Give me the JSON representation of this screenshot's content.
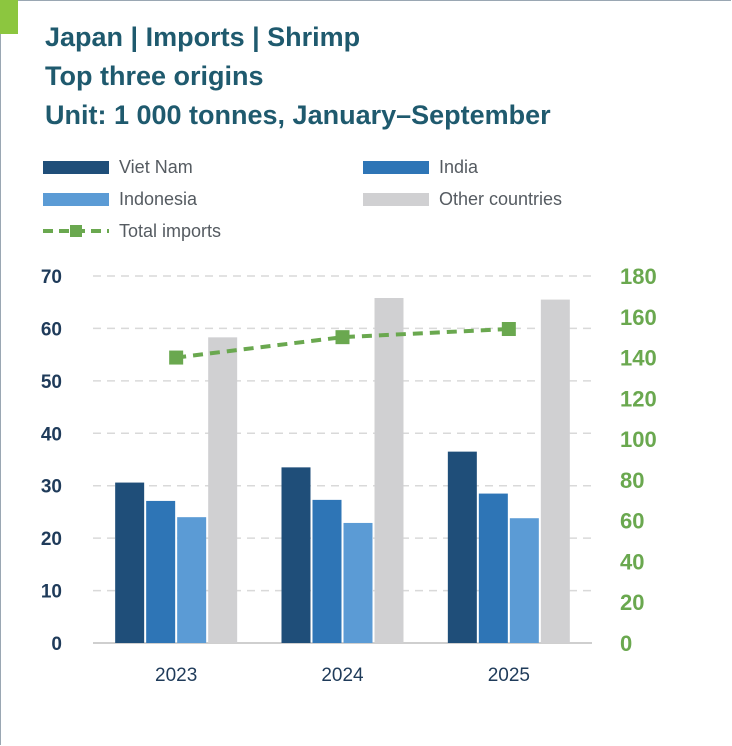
{
  "title": {
    "line1": "Japan | Imports | Shrimp",
    "line2": "Top three origins",
    "line3": "Unit: 1 000 tonnes, January–September"
  },
  "colors": {
    "title": "#1f5a6e",
    "viet_nam": "#1f4e79",
    "india": "#2e75b6",
    "indonesia": "#5b9bd5",
    "other": "#d0d0d2",
    "total": "#6aa84f",
    "left_axis": "#1f3b5a",
    "right_axis": "#6aa84f",
    "grid": "#d9d9d9"
  },
  "legend": [
    {
      "label": "Viet Nam",
      "key": "viet_nam"
    },
    {
      "label": "India",
      "key": "india"
    },
    {
      "label": "Indonesia",
      "key": "indonesia"
    },
    {
      "label": "Other countries",
      "key": "other"
    },
    {
      "label": "Total imports",
      "key": "total"
    }
  ],
  "chart_data": {
    "type": "bar",
    "title": "Japan | Imports | Shrimp",
    "categories": [
      "2023",
      "2024",
      "2025"
    ],
    "series": [
      {
        "name": "Viet Nam",
        "axis": "left",
        "values": [
          30.6,
          33.5,
          36.5
        ]
      },
      {
        "name": "India",
        "axis": "left",
        "values": [
          27.1,
          27.3,
          28.5
        ]
      },
      {
        "name": "Indonesia",
        "axis": "left",
        "values": [
          24.0,
          22.9,
          23.8
        ]
      },
      {
        "name": "Other countries",
        "axis": "left",
        "values": [
          58.3,
          65.8,
          65.5
        ]
      }
    ],
    "line_series": {
      "name": "Total imports",
      "axis": "right",
      "values": [
        140,
        150,
        154
      ]
    },
    "y_left": {
      "min": 0,
      "max": 70,
      "ticks": [
        "0",
        "10",
        "20",
        "30",
        "40",
        "50",
        "60",
        "70"
      ]
    },
    "y_right": {
      "min": 0,
      "max": 180,
      "ticks": [
        "0",
        "20",
        "40",
        "60",
        "80",
        "100",
        "120",
        "140",
        "160",
        "180"
      ]
    },
    "xlabel": "",
    "ylabel": "",
    "grid": true,
    "legend_position": "top"
  }
}
